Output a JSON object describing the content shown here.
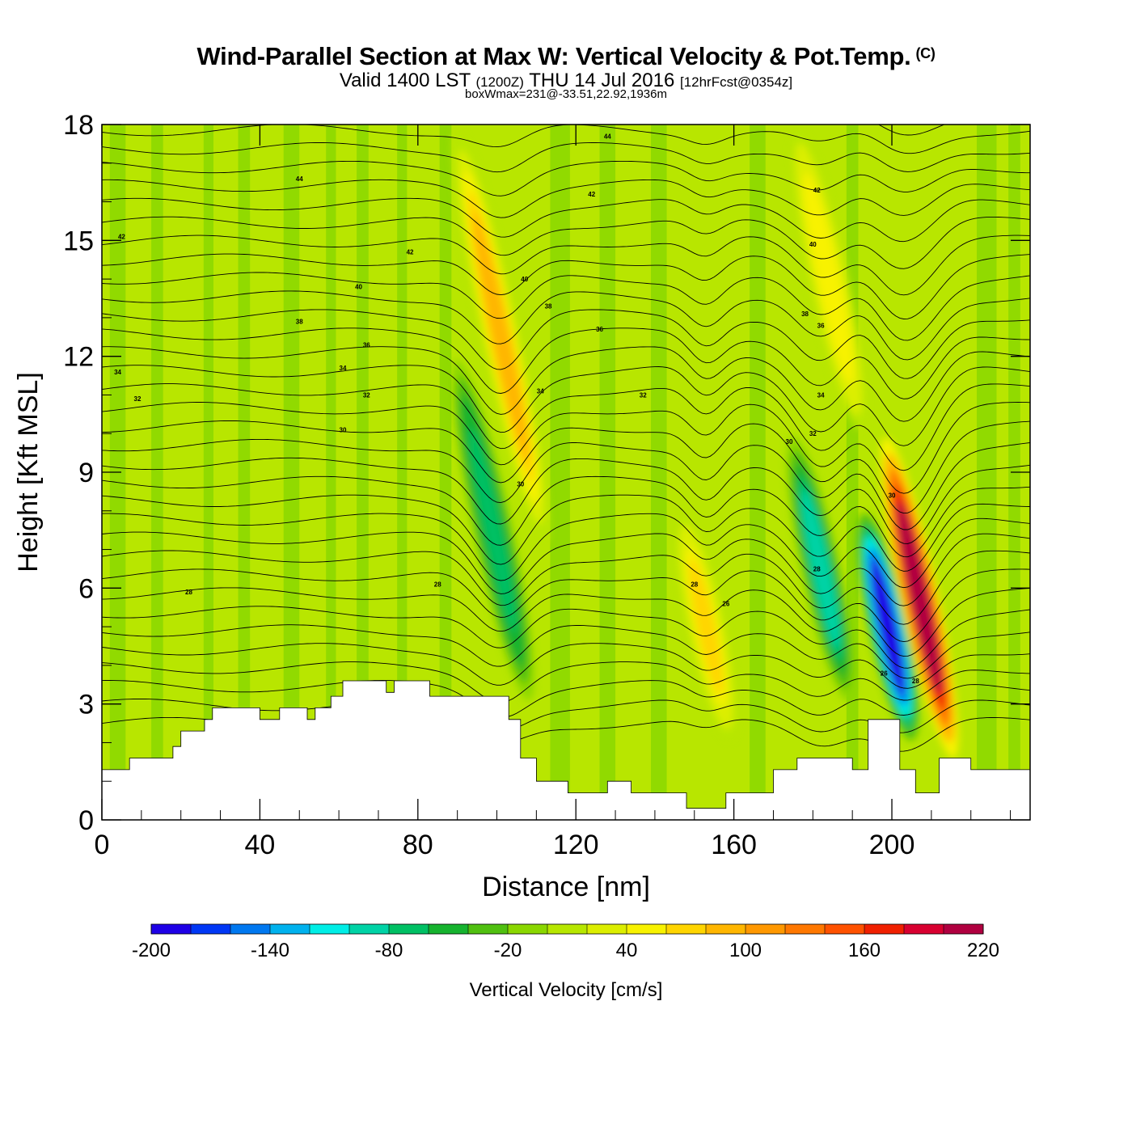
{
  "header": {
    "title": "Wind-Parallel Section at Max W: Vertical Velocity & Pot.Temp.",
    "copyright": "(C)",
    "valid_prefix": "Valid 1400 LST",
    "valid_z": "(1200Z)",
    "valid_date": "THU 14 Jul 2016",
    "forecast": "[12hrFcst@0354z]",
    "boxwmax": "boxWmax=231@-33.51,22.92,1936m"
  },
  "chart_data": {
    "type": "heatmap",
    "title": "Wind-Parallel Section at Max W: Vertical Velocity & Pot.Temp.",
    "xlabel": "Distance [nm]",
    "ylabel": "Height [Kft MSL]",
    "xlim": [
      0,
      235
    ],
    "ylim": [
      0,
      18
    ],
    "xticks": [
      0,
      40,
      80,
      120,
      160,
      200
    ],
    "yticks": [
      0,
      3,
      6,
      9,
      12,
      15,
      18
    ],
    "colorbar": {
      "label": "Vertical Velocity [cm/s]",
      "ticks": [
        -200,
        -140,
        -80,
        -20,
        40,
        100,
        160,
        220
      ],
      "levels": [
        -200,
        -180,
        -160,
        -140,
        -120,
        -100,
        -80,
        -60,
        -40,
        -20,
        0,
        20,
        40,
        60,
        80,
        100,
        120,
        140,
        160,
        180,
        200,
        220
      ],
      "colors": [
        "#1e00e6",
        "#0037f5",
        "#0078f0",
        "#00b2ee",
        "#00eee6",
        "#00d3a6",
        "#00c064",
        "#16b32f",
        "#50c010",
        "#8ad700",
        "#b7e700",
        "#dcee00",
        "#f8f200",
        "#ffd500",
        "#ffb600",
        "#ff9800",
        "#ff7800",
        "#ff5200",
        "#f02000",
        "#d80030",
        "#b00040"
      ]
    },
    "vv_features": [
      {
        "x": 101,
        "zmin": 7,
        "zmax": 18,
        "w": 80,
        "label": "updraft"
      },
      {
        "x": 99,
        "zmin": 3,
        "zmax": 12,
        "w": -70,
        "label": "downdraft"
      },
      {
        "x": 153,
        "zmin": 2,
        "zmax": 8,
        "w": 60,
        "label": "updraft"
      },
      {
        "x": 182,
        "zmin": 3,
        "zmax": 10,
        "w": -90,
        "label": "downdraft"
      },
      {
        "x": 199,
        "zmin": 2,
        "zmax": 8,
        "w": -190,
        "label": "downdraft"
      },
      {
        "x": 207,
        "zmin": 1.5,
        "zmax": 10,
        "w": 200,
        "label": "updraft"
      },
      {
        "x": 184,
        "zmin": 10,
        "zmax": 18,
        "w": 50,
        "label": "updraft"
      }
    ],
    "pot_temp_labels": [
      {
        "x": 5,
        "z": 15.1,
        "v": "42"
      },
      {
        "x": 50,
        "z": 16.6,
        "v": "44"
      },
      {
        "x": 128,
        "z": 17.7,
        "v": "44"
      },
      {
        "x": 124,
        "z": 16.2,
        "v": "42"
      },
      {
        "x": 78,
        "z": 14.7,
        "v": "42"
      },
      {
        "x": 65,
        "z": 13.8,
        "v": "40"
      },
      {
        "x": 50,
        "z": 12.9,
        "v": "38"
      },
      {
        "x": 67,
        "z": 12.3,
        "v": "36"
      },
      {
        "x": 61,
        "z": 11.7,
        "v": "34"
      },
      {
        "x": 4,
        "z": 11.6,
        "v": "34"
      },
      {
        "x": 9,
        "z": 10.9,
        "v": "32"
      },
      {
        "x": 67,
        "z": 11.0,
        "v": "32"
      },
      {
        "x": 61,
        "z": 10.1,
        "v": "30"
      },
      {
        "x": 22,
        "z": 5.9,
        "v": "28"
      },
      {
        "x": 85,
        "z": 6.1,
        "v": "28"
      },
      {
        "x": 107,
        "z": 14.0,
        "v": "40"
      },
      {
        "x": 113,
        "z": 13.3,
        "v": "38"
      },
      {
        "x": 126,
        "z": 12.7,
        "v": "36"
      },
      {
        "x": 111,
        "z": 11.1,
        "v": "34"
      },
      {
        "x": 137,
        "z": 11.0,
        "v": "32"
      },
      {
        "x": 106,
        "z": 8.7,
        "v": "30"
      },
      {
        "x": 150,
        "z": 6.1,
        "v": "28"
      },
      {
        "x": 158,
        "z": 5.6,
        "v": "26"
      },
      {
        "x": 181,
        "z": 16.3,
        "v": "42"
      },
      {
        "x": 180,
        "z": 14.9,
        "v": "40"
      },
      {
        "x": 178,
        "z": 13.1,
        "v": "38"
      },
      {
        "x": 182,
        "z": 12.8,
        "v": "36"
      },
      {
        "x": 182,
        "z": 11.0,
        "v": "34"
      },
      {
        "x": 180,
        "z": 10.0,
        "v": "32"
      },
      {
        "x": 174,
        "z": 9.8,
        "v": "30"
      },
      {
        "x": 200,
        "z": 8.4,
        "v": "30"
      },
      {
        "x": 181,
        "z": 6.5,
        "v": "28"
      },
      {
        "x": 198,
        "z": 3.8,
        "v": "26"
      },
      {
        "x": 206,
        "z": 3.6,
        "v": "28"
      }
    ],
    "terrain": [
      [
        0,
        1.3
      ],
      [
        6,
        1.3
      ],
      [
        7,
        1.6
      ],
      [
        17,
        1.6
      ],
      [
        18,
        1.9
      ],
      [
        20,
        2.3
      ],
      [
        26,
        2.6
      ],
      [
        28,
        2.9
      ],
      [
        39,
        2.9
      ],
      [
        40,
        2.6
      ],
      [
        44,
        2.6
      ],
      [
        45,
        2.9
      ],
      [
        50,
        2.9
      ],
      [
        52,
        2.6
      ],
      [
        54,
        2.9
      ],
      [
        58,
        3.2
      ],
      [
        61,
        3.6
      ],
      [
        71,
        3.6
      ],
      [
        72,
        3.3
      ],
      [
        74,
        3.6
      ],
      [
        82,
        3.6
      ],
      [
        83,
        3.2
      ],
      [
        100,
        3.2
      ],
      [
        103,
        2.6
      ],
      [
        106,
        1.6
      ],
      [
        110,
        1.0
      ],
      [
        118,
        0.7
      ],
      [
        128,
        1.0
      ],
      [
        134,
        0.7
      ],
      [
        148,
        0.3
      ],
      [
        154,
        0.3
      ],
      [
        158,
        0.7
      ],
      [
        170,
        1.3
      ],
      [
        176,
        1.6
      ],
      [
        190,
        1.3
      ],
      [
        194,
        2.6
      ],
      [
        198,
        2.6
      ],
      [
        202,
        1.3
      ],
      [
        206,
        0.7
      ],
      [
        212,
        1.6
      ],
      [
        220,
        1.3
      ],
      [
        235,
        1.3
      ]
    ]
  }
}
